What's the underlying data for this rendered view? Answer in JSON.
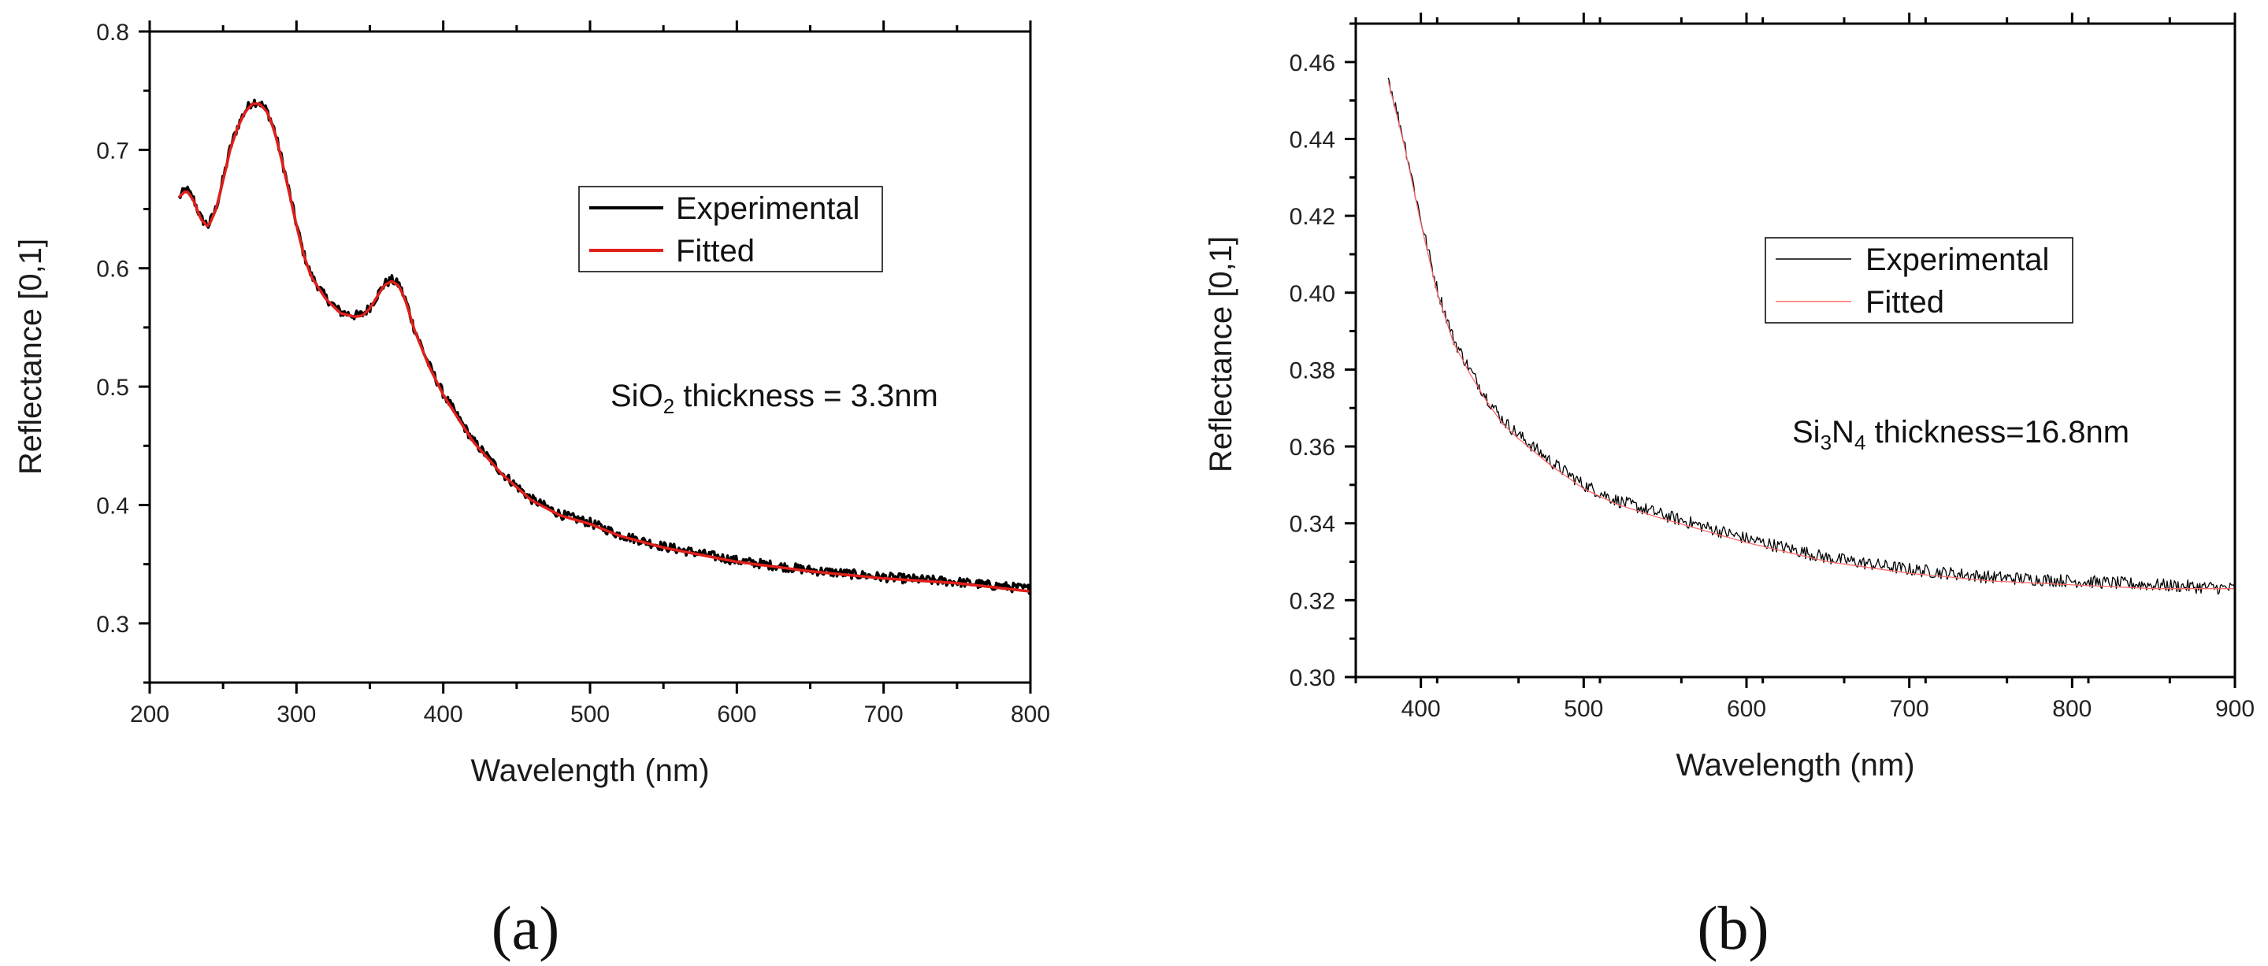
{
  "chart_data": [
    {
      "type": "line",
      "panel_label": "(a)",
      "xlabel": "Wavelength (nm)",
      "ylabel": "Reflectance [0,1]",
      "xlim": [
        200,
        800
      ],
      "ylim": [
        0.25,
        0.8
      ],
      "x_ticks": [
        200,
        300,
        400,
        500,
        600,
        700,
        800
      ],
      "x_tick_labels": [
        "200",
        "300",
        "400",
        "500",
        "600",
        "700",
        "800"
      ],
      "y_ticks": [
        0.3,
        0.4,
        0.5,
        0.6,
        0.7,
        0.8
      ],
      "y_tick_labels": [
        "0.3",
        "0.4",
        "0.5",
        "0.6",
        "0.7",
        "0.8"
      ],
      "legend_location": "center-right",
      "annotation": {
        "prefix": "SiO",
        "sub": "2",
        "suffix": " thickness = 3.3nm"
      },
      "series": [
        {
          "name": "Experimental",
          "color": "#000000",
          "noise": 0.004,
          "x": [
            220,
            225,
            230,
            235,
            240,
            245,
            250,
            255,
            260,
            265,
            270,
            275,
            280,
            285,
            290,
            295,
            300,
            305,
            310,
            320,
            330,
            340,
            345,
            350,
            355,
            360,
            365,
            370,
            375,
            380,
            390,
            400,
            420,
            440,
            460,
            480,
            500,
            520,
            550,
            600,
            650,
            700,
            750,
            800
          ],
          "y": [
            0.66,
            0.667,
            0.658,
            0.642,
            0.636,
            0.65,
            0.675,
            0.702,
            0.72,
            0.733,
            0.741,
            0.74,
            0.733,
            0.717,
            0.692,
            0.665,
            0.637,
            0.612,
            0.594,
            0.575,
            0.563,
            0.56,
            0.561,
            0.567,
            0.577,
            0.587,
            0.59,
            0.586,
            0.571,
            0.55,
            0.519,
            0.494,
            0.455,
            0.427,
            0.405,
            0.392,
            0.385,
            0.375,
            0.365,
            0.353,
            0.345,
            0.339,
            0.335,
            0.329
          ]
        },
        {
          "name": "Fitted",
          "color": "#e0201b",
          "noise": 0,
          "x": [
            220,
            225,
            230,
            235,
            240,
            245,
            250,
            255,
            260,
            265,
            270,
            275,
            280,
            285,
            290,
            295,
            300,
            305,
            310,
            320,
            330,
            340,
            345,
            350,
            355,
            360,
            365,
            370,
            375,
            380,
            390,
            400,
            420,
            440,
            460,
            480,
            500,
            520,
            550,
            600,
            650,
            700,
            750,
            800
          ],
          "y": [
            0.66,
            0.666,
            0.657,
            0.641,
            0.635,
            0.649,
            0.674,
            0.701,
            0.719,
            0.732,
            0.739,
            0.739,
            0.732,
            0.716,
            0.691,
            0.664,
            0.636,
            0.611,
            0.593,
            0.574,
            0.562,
            0.559,
            0.56,
            0.566,
            0.576,
            0.586,
            0.589,
            0.585,
            0.57,
            0.549,
            0.518,
            0.493,
            0.454,
            0.426,
            0.404,
            0.391,
            0.384,
            0.374,
            0.364,
            0.352,
            0.344,
            0.338,
            0.334,
            0.327
          ]
        }
      ]
    },
    {
      "type": "line",
      "panel_label": "(b)",
      "xlabel": "Wavelength (nm)",
      "ylabel": "Reflectance [0,1]",
      "xlim": [
        360,
        900
      ],
      "ylim": [
        0.3,
        0.47
      ],
      "x_ticks": [
        400,
        500,
        600,
        700,
        800,
        900
      ],
      "x_tick_labels": [
        "400",
        "500",
        "600",
        "700",
        "800",
        "900"
      ],
      "y_ticks": [
        0.3,
        0.32,
        0.34,
        0.36,
        0.38,
        0.4,
        0.42,
        0.44,
        0.46
      ],
      "y_tick_labels": [
        "0.30",
        "0.32",
        "0.34",
        "0.36",
        "0.38",
        "0.40",
        "0.42",
        "0.44",
        "0.46"
      ],
      "legend_location": "center-right",
      "annotation": {
        "parts": [
          {
            "t": "Si"
          },
          {
            "t": "3",
            "sub": true
          },
          {
            "t": "N"
          },
          {
            "t": "4",
            "sub": true
          },
          {
            "t": " thickness=16.8nm"
          }
        ]
      },
      "series": [
        {
          "name": "Experimental",
          "color": "#000000",
          "noise": 0.0017,
          "x": [
            380,
            390,
            400,
            410,
            420,
            430,
            440,
            450,
            460,
            480,
            500,
            520,
            550,
            600,
            650,
            700,
            750,
            800,
            850,
            900
          ],
          "y": [
            0.456,
            0.439,
            0.419,
            0.401,
            0.388,
            0.38,
            0.373,
            0.367,
            0.363,
            0.356,
            0.35,
            0.346,
            0.342,
            0.336,
            0.331,
            0.328,
            0.326,
            0.325,
            0.324,
            0.323
          ]
        },
        {
          "name": "Fitted",
          "color": "#ff6b6b",
          "noise": 0,
          "x": [
            380,
            390,
            400,
            410,
            420,
            430,
            440,
            450,
            460,
            480,
            500,
            520,
            550,
            600,
            650,
            700,
            750,
            800,
            850,
            900
          ],
          "y": [
            0.455,
            0.438,
            0.418,
            0.4,
            0.387,
            0.379,
            0.372,
            0.366,
            0.362,
            0.355,
            0.349,
            0.345,
            0.341,
            0.335,
            0.33,
            0.327,
            0.325,
            0.324,
            0.323,
            0.323
          ]
        }
      ]
    }
  ]
}
